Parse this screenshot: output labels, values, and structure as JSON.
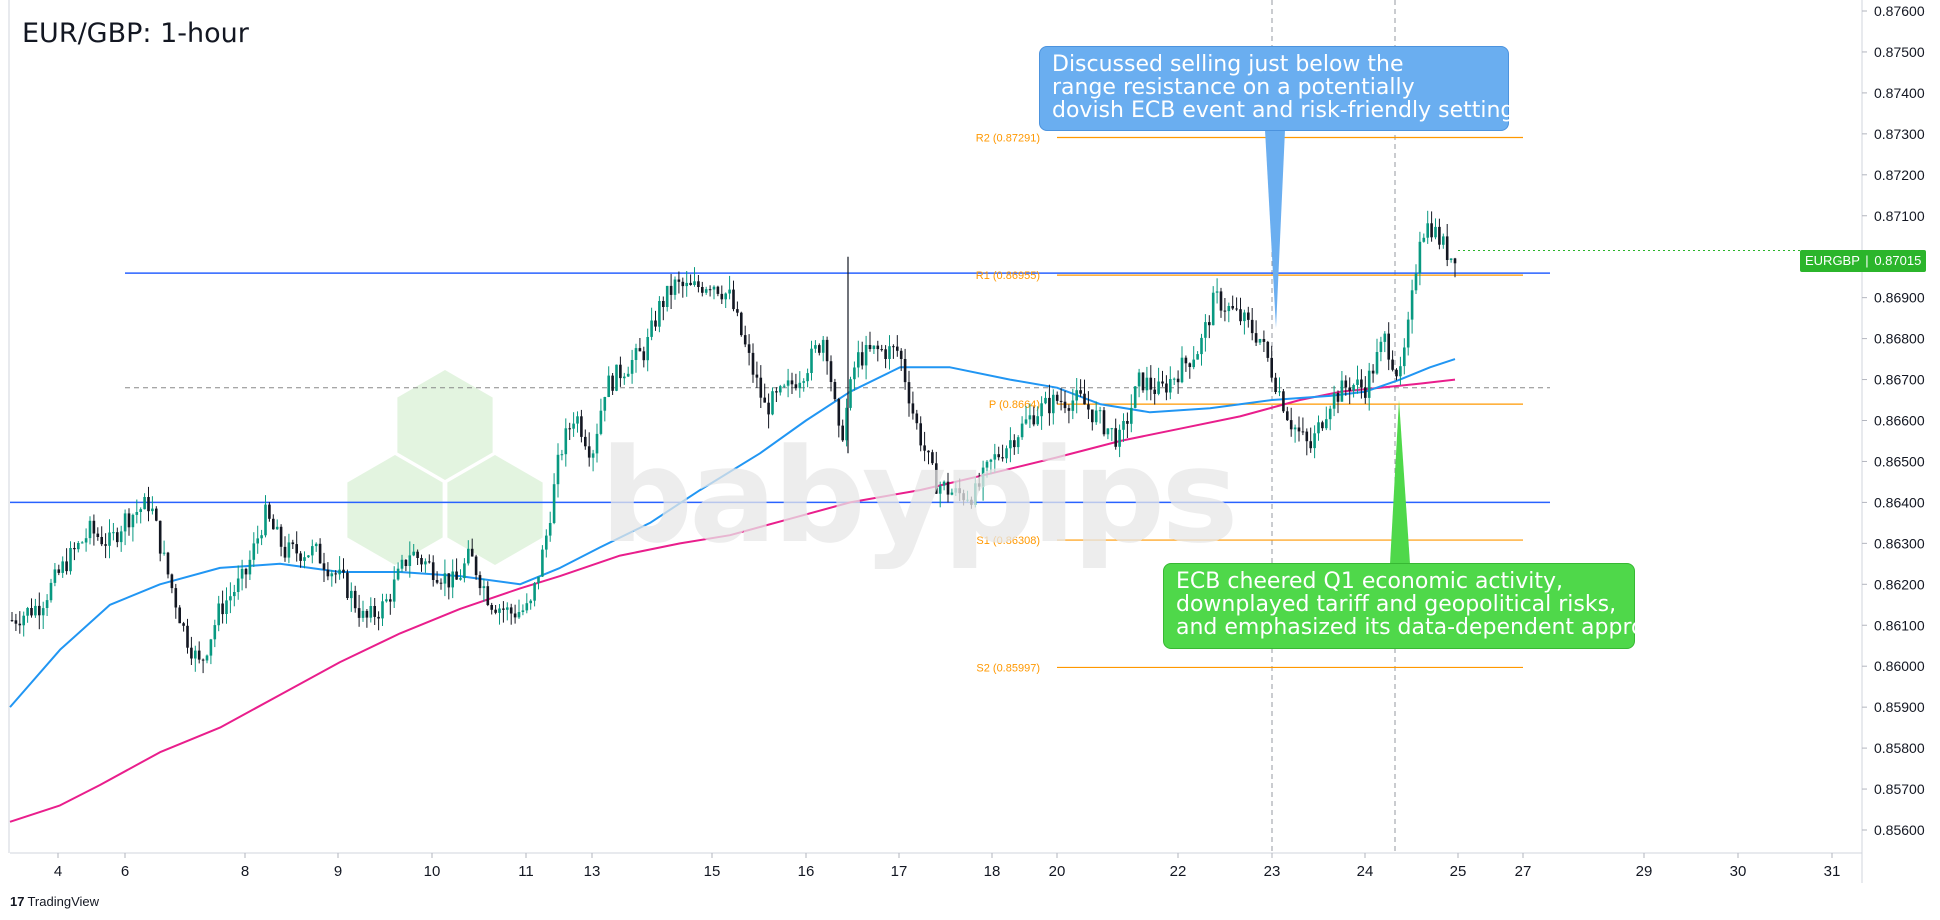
{
  "chart_data": {
    "type": "candlestick",
    "title": "EUR/GBP: 1-hour",
    "symbol_label": "EURGBP",
    "last_price_label": "0.87015",
    "last_price": 0.87015,
    "ylim": [
      0.8555,
      0.8776
    ],
    "y_ticks": [
      "0.85600",
      "0.85700",
      "0.85800",
      "0.85900",
      "0.86000",
      "0.86100",
      "0.86200",
      "0.86300",
      "0.86400",
      "0.86500",
      "0.86600",
      "0.86700",
      "0.86800",
      "0.86900",
      "0.87000",
      "0.87100",
      "0.87200",
      "0.87300",
      "0.87400",
      "0.87500",
      "0.87600"
    ],
    "x_ticks": [
      {
        "label": "4",
        "pos": 58
      },
      {
        "label": "6",
        "pos": 125
      },
      {
        "label": "8",
        "pos": 245
      },
      {
        "label": "9",
        "pos": 338
      },
      {
        "label": "10",
        "pos": 432
      },
      {
        "label": "11",
        "pos": 526
      },
      {
        "label": "13",
        "pos": 592
      },
      {
        "label": "15",
        "pos": 712
      },
      {
        "label": "16",
        "pos": 806
      },
      {
        "label": "17",
        "pos": 899
      },
      {
        "label": "18",
        "pos": 992
      },
      {
        "label": "20",
        "pos": 1057
      },
      {
        "label": "22",
        "pos": 1178
      },
      {
        "label": "23",
        "pos": 1272
      },
      {
        "label": "24",
        "pos": 1365
      },
      {
        "label": "25",
        "pos": 1458
      },
      {
        "label": "27",
        "pos": 1523
      },
      {
        "label": "29",
        "pos": 1644
      },
      {
        "label": "30",
        "pos": 1738
      },
      {
        "label": "31",
        "pos": 1832
      }
    ],
    "price_path": [
      [
        10,
        0.8611
      ],
      [
        40,
        0.8615
      ],
      [
        65,
        0.8625
      ],
      [
        90,
        0.8633
      ],
      [
        110,
        0.863
      ],
      [
        125,
        0.8636
      ],
      [
        150,
        0.864
      ],
      [
        165,
        0.8625
      ],
      [
        185,
        0.8608
      ],
      [
        200,
        0.86
      ],
      [
        220,
        0.8614
      ],
      [
        245,
        0.8622
      ],
      [
        265,
        0.8637
      ],
      [
        285,
        0.8628
      ],
      [
        315,
        0.8628
      ],
      [
        345,
        0.862
      ],
      [
        365,
        0.8611
      ],
      [
        385,
        0.8615
      ],
      [
        410,
        0.8628
      ],
      [
        432,
        0.8624
      ],
      [
        455,
        0.862
      ],
      [
        470,
        0.8627
      ],
      [
        490,
        0.8616
      ],
      [
        510,
        0.8613
      ],
      [
        530,
        0.8614
      ],
      [
        545,
        0.863
      ],
      [
        560,
        0.8652
      ],
      [
        575,
        0.8662
      ],
      [
        592,
        0.8652
      ],
      [
        605,
        0.8668
      ],
      [
        625,
        0.8673
      ],
      [
        645,
        0.8677
      ],
      [
        660,
        0.8688
      ],
      [
        675,
        0.8693
      ],
      [
        690,
        0.8692
      ],
      [
        712,
        0.8694
      ],
      [
        730,
        0.869
      ],
      [
        745,
        0.8678
      ],
      [
        765,
        0.8663
      ],
      [
        785,
        0.8667
      ],
      [
        806,
        0.8673
      ],
      [
        825,
        0.8681
      ],
      [
        840,
        0.8654
      ],
      [
        856,
        0.8675
      ],
      [
        875,
        0.8677
      ],
      [
        899,
        0.8677
      ],
      [
        915,
        0.866
      ],
      [
        935,
        0.8645
      ],
      [
        955,
        0.8642
      ],
      [
        975,
        0.8642
      ],
      [
        992,
        0.865
      ],
      [
        1010,
        0.8655
      ],
      [
        1035,
        0.8662
      ],
      [
        1057,
        0.8665
      ],
      [
        1080,
        0.8665
      ],
      [
        1100,
        0.866
      ],
      [
        1120,
        0.8655
      ],
      [
        1140,
        0.867
      ],
      [
        1160,
        0.8667
      ],
      [
        1178,
        0.8672
      ],
      [
        1200,
        0.8678
      ],
      [
        1215,
        0.869
      ],
      [
        1230,
        0.8687
      ],
      [
        1245,
        0.8684
      ],
      [
        1260,
        0.868
      ],
      [
        1272,
        0.8672
      ],
      [
        1290,
        0.866
      ],
      [
        1310,
        0.8653
      ],
      [
        1330,
        0.8665
      ],
      [
        1350,
        0.8669
      ],
      [
        1365,
        0.8668
      ],
      [
        1385,
        0.868
      ],
      [
        1400,
        0.867
      ],
      [
        1410,
        0.8685
      ],
      [
        1420,
        0.8706
      ],
      [
        1430,
        0.8708
      ],
      [
        1440,
        0.8704
      ],
      [
        1450,
        0.87
      ],
      [
        1458,
        0.87015
      ]
    ],
    "ma_blue": [
      [
        10,
        0.859
      ],
      [
        60,
        0.8604
      ],
      [
        110,
        0.8615
      ],
      [
        160,
        0.862
      ],
      [
        220,
        0.8624
      ],
      [
        280,
        0.8625
      ],
      [
        340,
        0.8623
      ],
      [
        400,
        0.8623
      ],
      [
        460,
        0.8622
      ],
      [
        520,
        0.862
      ],
      [
        560,
        0.8624
      ],
      [
        600,
        0.8629
      ],
      [
        650,
        0.8635
      ],
      [
        700,
        0.8643
      ],
      [
        760,
        0.8652
      ],
      [
        806,
        0.866
      ],
      [
        850,
        0.8667
      ],
      [
        900,
        0.8673
      ],
      [
        950,
        0.8673
      ],
      [
        1010,
        0.867
      ],
      [
        1057,
        0.8668
      ],
      [
        1100,
        0.8664
      ],
      [
        1150,
        0.8662
      ],
      [
        1210,
        0.8663
      ],
      [
        1272,
        0.8665
      ],
      [
        1330,
        0.8666
      ],
      [
        1365,
        0.8667
      ],
      [
        1400,
        0.867
      ],
      [
        1430,
        0.8673
      ],
      [
        1455,
        0.8675
      ]
    ],
    "ma_magenta": [
      [
        10,
        0.8562
      ],
      [
        60,
        0.8566
      ],
      [
        100,
        0.8571
      ],
      [
        160,
        0.8579
      ],
      [
        220,
        0.8585
      ],
      [
        280,
        0.8593
      ],
      [
        340,
        0.8601
      ],
      [
        400,
        0.8608
      ],
      [
        460,
        0.8614
      ],
      [
        520,
        0.8619
      ],
      [
        560,
        0.8622
      ],
      [
        620,
        0.8627
      ],
      [
        680,
        0.863
      ],
      [
        730,
        0.8632
      ],
      [
        790,
        0.8636
      ],
      [
        850,
        0.864
      ],
      [
        920,
        0.8643
      ],
      [
        990,
        0.8647
      ],
      [
        1057,
        0.8651
      ],
      [
        1120,
        0.8655
      ],
      [
        1180,
        0.8658
      ],
      [
        1240,
        0.8661
      ],
      [
        1300,
        0.8665
      ],
      [
        1340,
        0.8667
      ],
      [
        1380,
        0.8668
      ],
      [
        1420,
        0.8669
      ],
      [
        1455,
        0.867
      ]
    ],
    "horizontal_lines": [
      {
        "name": "range-resistance",
        "value": 0.8696,
        "color": "#2962ff",
        "x_from": 125,
        "x_to": 1550
      },
      {
        "name": "range-support",
        "value": 0.864,
        "color": "#2962ff",
        "x_from": 10,
        "x_to": 1550
      },
      {
        "name": "mid-range",
        "value": 0.8668,
        "color": "#888888",
        "x_from": 125,
        "x_to": 1550,
        "dashed": true
      }
    ],
    "pivots": [
      {
        "label": "R2 (0.87291)",
        "value": 0.87291
      },
      {
        "label": "R1 (0.86955)",
        "value": 0.86955
      },
      {
        "label": "P (0.8664)",
        "value": 0.8664
      },
      {
        "label": "S1 (0.86308)",
        "value": 0.86308
      },
      {
        "label": "S2 (0.85997)",
        "value": 0.85997
      }
    ],
    "pivot_color": "#ff9800",
    "event_markers": [
      1272,
      1395
    ],
    "colors": {
      "up": "#089981",
      "down": "#131722",
      "ma_blue": "#2196f3",
      "ma_magenta": "#e91e8c"
    },
    "annotations": [
      {
        "id": "blue",
        "lines": [
          "Discussed selling just below the",
          "range resistance on a potentially",
          "dovish ECB event and risk-friendly setting"
        ],
        "color": "#6aaef0"
      },
      {
        "id": "green",
        "lines": [
          "ECB cheered Q1 economic activity,",
          "downplayed tariff and geopolitical risks,",
          "and emphasized its data-dependent approach"
        ],
        "color": "#4fd84a"
      }
    ]
  },
  "watermark_text": "babypips",
  "footer": {
    "brand": "TradingView",
    "brand_mark": "17"
  }
}
